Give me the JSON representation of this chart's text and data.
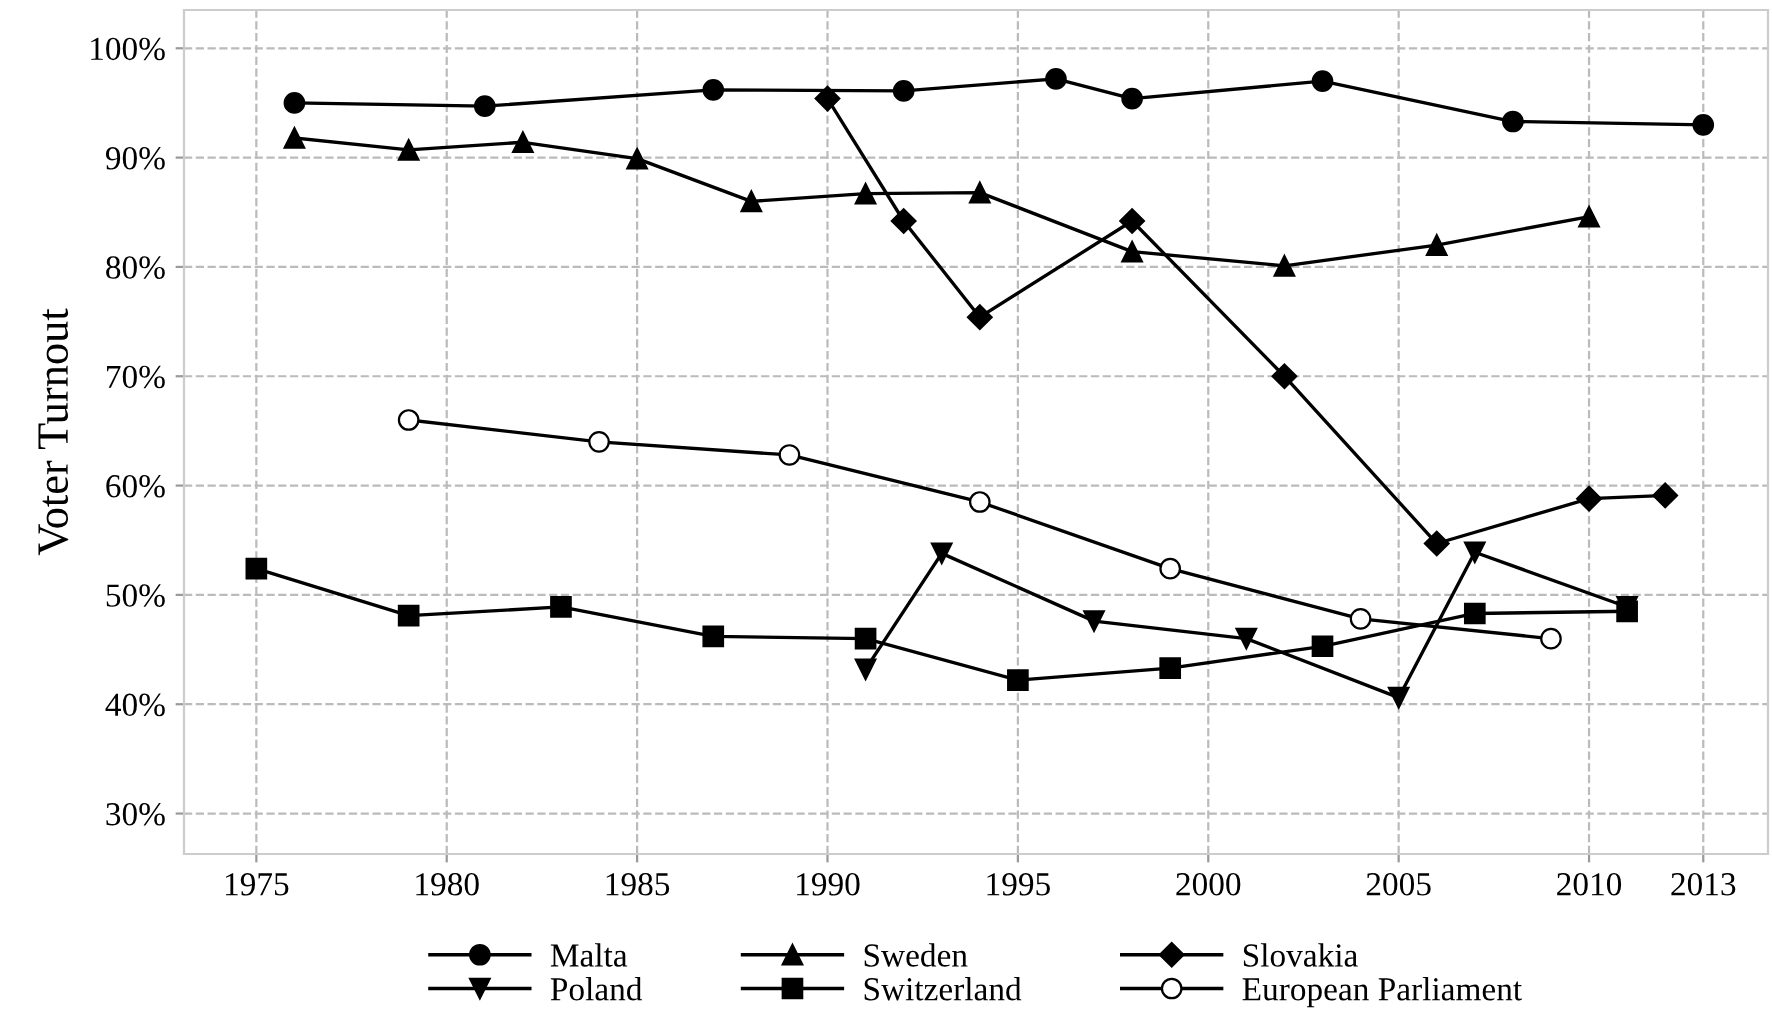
{
  "chart_data": {
    "type": "line",
    "ylabel": "Voter Turnout",
    "xlim": [
      1973.1,
      2014.7
    ],
    "ylim": [
      26.3,
      103.5
    ],
    "xticks": [
      1975,
      1980,
      1985,
      1990,
      1995,
      2000,
      2005,
      2010,
      2013
    ],
    "yticks": [
      {
        "value": 30,
        "label": "30%"
      },
      {
        "value": 40,
        "label": "40%"
      },
      {
        "value": 50,
        "label": "50%"
      },
      {
        "value": 60,
        "label": "60%"
      },
      {
        "value": 70,
        "label": "70%"
      },
      {
        "value": 80,
        "label": "80%"
      },
      {
        "value": 90,
        "label": "90%"
      },
      {
        "value": 100,
        "label": "100%"
      }
    ],
    "grid": true,
    "legend": "bottom",
    "line_style": "solid",
    "series": [
      {
        "name": "Malta",
        "color": "#000000",
        "marker": "circle",
        "x": [
          1976,
          1981,
          1987,
          1992,
          1996,
          1998,
          2003,
          2008,
          2013
        ],
        "values": [
          95.0,
          94.7,
          96.2,
          96.1,
          97.2,
          95.4,
          97.0,
          93.3,
          93.0
        ]
      },
      {
        "name": "Sweden",
        "color": "#000000",
        "marker": "triangle",
        "x": [
          1976,
          1979,
          1982,
          1985,
          1988,
          1991,
          1994,
          1998,
          2002,
          2006,
          2010
        ],
        "values": [
          91.8,
          90.7,
          91.4,
          89.9,
          86.0,
          86.7,
          86.8,
          81.4,
          80.1,
          82.0,
          84.6
        ]
      },
      {
        "name": "Slovakia",
        "color": "#000000",
        "marker": "diamond",
        "x": [
          1990,
          1992,
          1994,
          1998,
          2002,
          2006,
          2010,
          2012
        ],
        "values": [
          95.4,
          84.2,
          75.4,
          84.2,
          70.0,
          54.7,
          58.8,
          59.1
        ]
      },
      {
        "name": "Poland",
        "color": "#000000",
        "marker": "triangle_down",
        "x": [
          1991,
          1993,
          1997,
          2001,
          2005,
          2007,
          2011
        ],
        "values": [
          43.2,
          53.8,
          47.6,
          46.0,
          40.6,
          53.9,
          48.9
        ]
      },
      {
        "name": "Switzerland",
        "color": "#000000",
        "marker": "square",
        "x": [
          1975,
          1979,
          1983,
          1987,
          1991,
          1995,
          1999,
          2003,
          2007,
          2011
        ],
        "values": [
          52.4,
          48.1,
          48.9,
          46.2,
          46.0,
          42.2,
          43.3,
          45.3,
          48.3,
          48.5
        ]
      },
      {
        "name": "European Parliament",
        "color": "#000000",
        "marker": "circle",
        "colors": [
          "#ffffff",
          "#ffffff",
          "#ffffff",
          "#ffffff",
          "#ffffff",
          "#ffffff",
          "#ffffff"
        ],
        "x": [
          1979,
          1984,
          1989,
          1994,
          1999,
          2004,
          2009
        ],
        "values": [
          66.0,
          64.0,
          62.8,
          58.5,
          52.4,
          47.8,
          46.0
        ]
      }
    ]
  }
}
